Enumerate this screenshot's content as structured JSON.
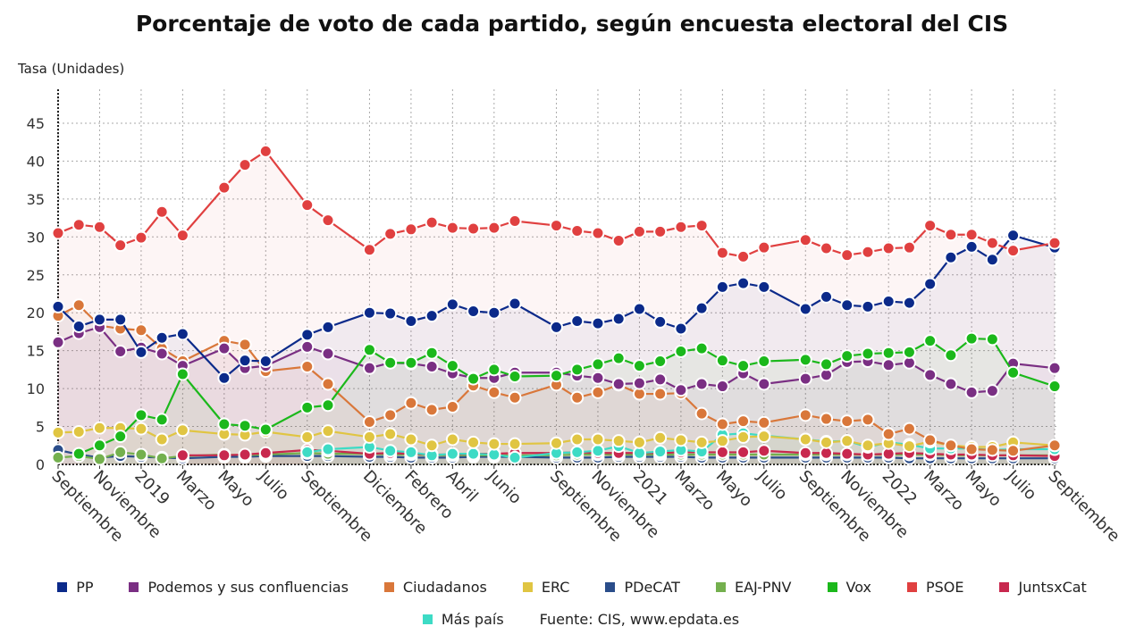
{
  "title": "Porcentaje de voto de cada partido, según encuesta electoral del CIS",
  "source": "Fuente: CIS, www.epdata.es",
  "chart_data": {
    "type": "line",
    "title": "Porcentaje de voto de cada partido, según encuesta electoral del CIS",
    "ylabel": "Tasa (Unidades)",
    "xlabel": "",
    "ylim": [
      0,
      49.5
    ],
    "yticks": [
      0,
      5,
      10,
      15,
      20,
      25,
      30,
      35,
      40,
      45
    ],
    "grid": true,
    "legend": "bottom",
    "x": [
      "2018-09",
      "2018-10",
      "2018-11",
      "2018-12",
      "2019-01",
      "2019-02",
      "2019-03",
      "2019-05",
      "2019-06",
      "2019-07",
      "2019-09",
      "2019-10",
      "2019-12",
      "2020-01",
      "2020-02",
      "2020-03",
      "2020-04",
      "2020-05",
      "2020-06",
      "2020-07",
      "2020-09",
      "2020-10",
      "2020-11",
      "2020-12",
      "2021-01",
      "2021-02",
      "2021-03",
      "2021-04",
      "2021-05",
      "2021-06",
      "2021-07",
      "2021-09",
      "2021-10",
      "2021-11",
      "2021-12",
      "2022-01",
      "2022-02",
      "2022-03",
      "2022-04",
      "2022-05",
      "2022-06",
      "2022-07",
      "2022-09"
    ],
    "xticks": [
      {
        "date": "2018-09",
        "label": "Septiembre"
      },
      {
        "date": "2018-11",
        "label": "Noviembre"
      },
      {
        "date": "2019-01",
        "label": "2019"
      },
      {
        "date": "2019-03",
        "label": "Marzo"
      },
      {
        "date": "2019-05",
        "label": "Mayo"
      },
      {
        "date": "2019-07",
        "label": "Julio"
      },
      {
        "date": "2019-09",
        "label": "Septiembre"
      },
      {
        "date": "2019-12",
        "label": "Diciembre"
      },
      {
        "date": "2020-02",
        "label": "Febrero"
      },
      {
        "date": "2020-04",
        "label": "Abril"
      },
      {
        "date": "2020-06",
        "label": "Junio"
      },
      {
        "date": "2020-09",
        "label": "Septiembre"
      },
      {
        "date": "2020-11",
        "label": "Noviembre"
      },
      {
        "date": "2021-01",
        "label": "2021"
      },
      {
        "date": "2021-03",
        "label": "Marzo"
      },
      {
        "date": "2021-05",
        "label": "Mayo"
      },
      {
        "date": "2021-07",
        "label": "Julio"
      },
      {
        "date": "2021-09",
        "label": "Septiembre"
      },
      {
        "date": "2021-11",
        "label": "Noviembre"
      },
      {
        "date": "2022-01",
        "label": "2022"
      },
      {
        "date": "2022-03",
        "label": "Marzo"
      },
      {
        "date": "2022-05",
        "label": "Mayo"
      },
      {
        "date": "2022-07",
        "label": "Julio"
      },
      {
        "date": "2022-09",
        "label": "Septiembre"
      }
    ],
    "series": [
      {
        "name": "PP",
        "color": "#0b2a8a",
        "values": [
          20.8,
          18.2,
          19.1,
          19.1,
          14.8,
          16.7,
          17.2,
          11.4,
          13.7,
          13.6,
          17.1,
          18.1,
          20.0,
          19.9,
          18.9,
          19.6,
          21.1,
          20.2,
          20.0,
          21.2,
          18.1,
          18.9,
          18.6,
          19.2,
          20.5,
          18.8,
          17.9,
          20.6,
          23.4,
          23.9,
          23.4,
          20.5,
          22.1,
          21.0,
          20.8,
          21.5,
          21.3,
          23.8,
          27.3,
          28.7,
          27.0,
          30.2,
          28.6
        ]
      },
      {
        "name": "Podemos y sus confluencias",
        "color": "#7a2f83",
        "values": [
          16.1,
          17.3,
          18.1,
          14.9,
          15.4,
          14.6,
          13.0,
          15.3,
          12.7,
          13.0,
          15.5,
          14.6,
          12.7,
          13.4,
          13.3,
          12.9,
          12.0,
          11.4,
          11.4,
          12.1,
          12.1,
          11.7,
          11.4,
          10.6,
          10.7,
          11.2,
          9.8,
          10.6,
          10.3,
          12.0,
          10.6,
          11.3,
          11.8,
          13.5,
          13.6,
          13.1,
          13.4,
          11.8,
          10.6,
          9.5,
          9.7,
          13.3,
          12.7
        ]
      },
      {
        "name": "Ciudadanos",
        "color": "#d9773a",
        "values": [
          19.6,
          21.0,
          18.3,
          17.9,
          17.7,
          15.3,
          13.6,
          16.3,
          15.8,
          12.3,
          12.9,
          10.6,
          5.6,
          6.5,
          8.1,
          7.2,
          7.6,
          10.4,
          9.5,
          8.8,
          10.5,
          8.8,
          9.5,
          10.5,
          9.3,
          9.3,
          9.4,
          6.7,
          5.3,
          5.7,
          5.5,
          6.5,
          6.0,
          5.7,
          5.9,
          4.0,
          4.7,
          3.2,
          2.5,
          2.0,
          1.9,
          1.8,
          2.5
        ]
      },
      {
        "name": "ERC",
        "color": "#e0c542",
        "values": [
          4.2,
          4.3,
          4.8,
          4.8,
          4.7,
          3.3,
          4.5,
          4.0,
          3.9,
          4.3,
          3.6,
          4.4,
          3.6,
          4.0,
          3.3,
          2.5,
          3.3,
          2.9,
          2.7,
          2.7,
          2.8,
          3.3,
          3.3,
          3.1,
          2.9,
          3.5,
          3.2,
          2.9,
          3.1,
          3.6,
          3.7,
          3.3,
          2.9,
          3.1,
          2.5,
          2.8,
          2.4,
          3.0,
          2.5,
          2.3,
          2.3,
          2.9,
          2.5
        ]
      },
      {
        "name": "PDeCAT",
        "color": "#2a4d8a",
        "values": [
          1.9,
          1.3,
          0.9,
          1.1,
          1.0,
          0.9,
          0.8,
          1.0,
          1.0,
          1.1,
          1.1,
          1.1,
          1.0,
          1.0,
          0.9,
          0.9,
          0.9,
          1.0,
          1.0,
          1.0,
          0.9,
          0.9,
          0.9,
          1.0,
          1.0,
          1.0,
          1.0,
          0.9,
          0.9,
          0.9,
          0.9,
          0.9,
          0.9,
          0.9,
          0.9,
          0.9,
          0.8,
          0.8,
          0.8,
          0.8,
          0.8,
          0.8,
          0.8
        ]
      },
      {
        "name": "EAJ-PNV",
        "color": "#74b04e",
        "values": [
          0.9,
          1.1,
          0.7,
          1.6,
          1.3,
          0.8,
          1.1,
          1.3,
          1.2,
          1.3,
          1.5,
          1.4,
          1.4,
          1.3,
          1.3,
          1.2,
          1.2,
          1.2,
          1.2,
          1.2,
          1.2,
          1.3,
          1.3,
          1.3,
          1.3,
          1.3,
          1.3,
          1.3,
          1.3,
          1.3,
          1.3,
          1.3,
          1.3,
          1.3,
          1.3,
          1.3,
          1.3,
          1.3,
          1.2,
          1.2,
          1.2,
          1.2,
          1.2
        ]
      },
      {
        "name": "Vox",
        "color": "#1bb81b",
        "values": [
          null,
          1.4,
          2.5,
          3.7,
          6.5,
          5.9,
          11.9,
          5.3,
          5.1,
          4.6,
          7.5,
          7.8,
          15.1,
          13.4,
          13.4,
          14.7,
          13.0,
          11.3,
          12.5,
          11.6,
          11.7,
          12.5,
          13.2,
          14.0,
          13.0,
          13.6,
          14.9,
          15.3,
          13.7,
          13.0,
          13.6,
          13.8,
          13.2,
          14.3,
          14.6,
          14.7,
          14.8,
          16.3,
          14.4,
          16.6,
          16.5,
          12.1,
          10.3
        ]
      },
      {
        "name": "PSOE",
        "color": "#e04040",
        "values": [
          30.5,
          31.6,
          31.3,
          28.9,
          29.9,
          33.3,
          30.2,
          36.5,
          39.5,
          41.3,
          34.2,
          32.2,
          28.3,
          30.4,
          31.0,
          31.9,
          31.2,
          31.1,
          31.2,
          32.1,
          31.5,
          30.8,
          30.5,
          29.5,
          30.7,
          30.7,
          31.3,
          31.5,
          27.9,
          27.4,
          28.6,
          29.6,
          28.5,
          27.6,
          28.0,
          28.5,
          28.6,
          31.5,
          30.3,
          30.3,
          29.2,
          28.2,
          29.2
        ]
      },
      {
        "name": "JuntsxCat",
        "color": "#c8284e",
        "values": [
          null,
          null,
          null,
          null,
          null,
          null,
          1.2,
          1.2,
          1.3,
          1.5,
          1.9,
          1.8,
          1.4,
          1.5,
          1.4,
          1.3,
          1.3,
          1.4,
          1.4,
          1.5,
          1.5,
          1.6,
          1.5,
          1.5,
          1.5,
          1.5,
          1.6,
          1.6,
          1.6,
          1.6,
          1.8,
          1.5,
          1.5,
          1.4,
          1.3,
          1.4,
          1.5,
          1.4,
          1.3,
          1.3,
          1.2,
          1.2,
          1.1
        ]
      },
      {
        "name": "Más país",
        "color": "#3ddbc5",
        "values": [
          null,
          null,
          null,
          null,
          null,
          null,
          null,
          null,
          null,
          null,
          1.6,
          2.0,
          2.3,
          1.8,
          1.6,
          1.2,
          1.4,
          1.4,
          1.3,
          0.9,
          1.5,
          1.6,
          1.8,
          2.4,
          1.5,
          1.7,
          1.9,
          1.7,
          3.9,
          4.1,
          3.8,
          3.3,
          3.0,
          3.1,
          2.3,
          2.9,
          2.6,
          2.1,
          2.1,
          2.1,
          1.9,
          2.0,
          2.0
        ]
      }
    ]
  }
}
